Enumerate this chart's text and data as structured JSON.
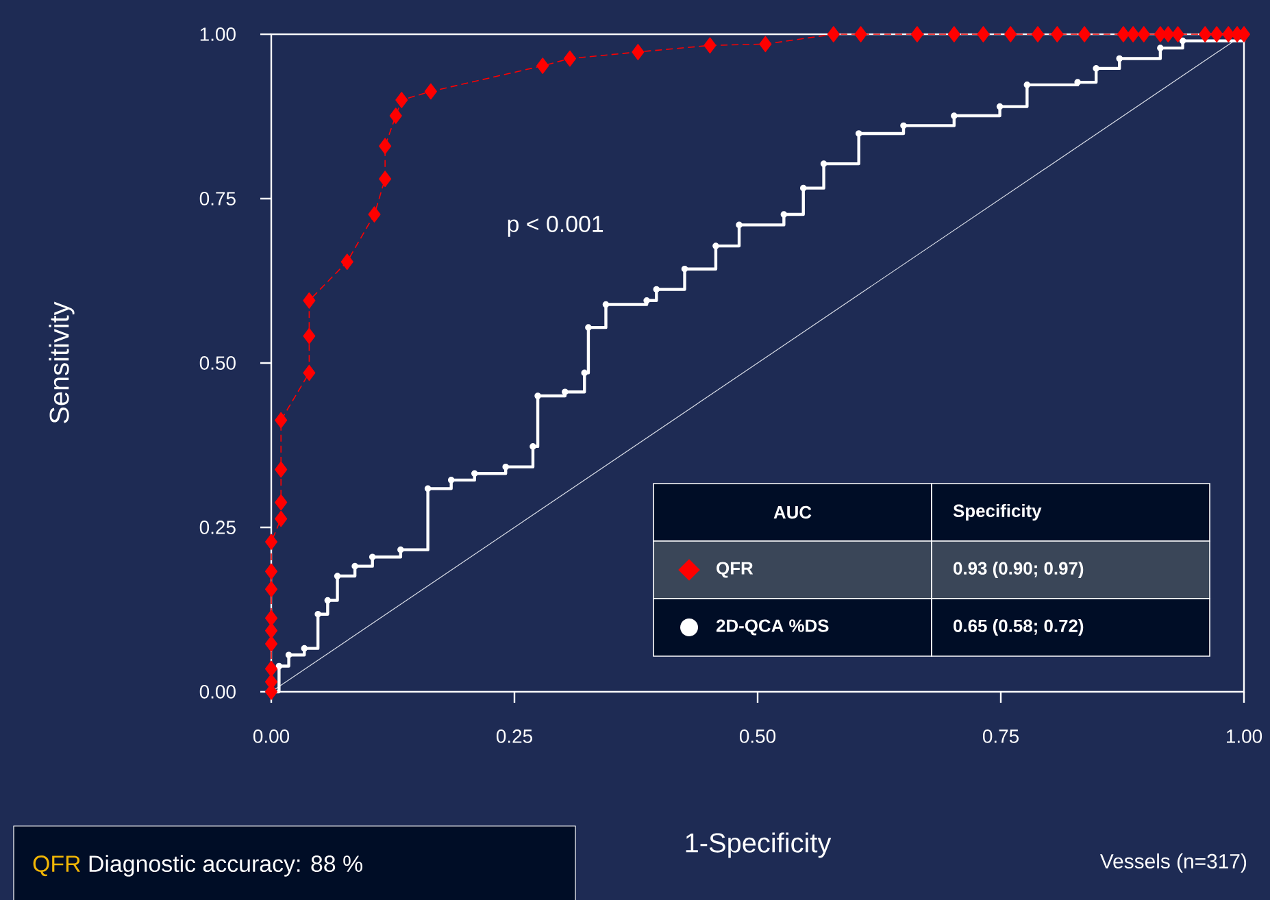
{
  "chart_data": {
    "type": "line",
    "xlabel": "1-Specificity",
    "ylabel": "Sensitivity",
    "xlim": [
      0,
      1
    ],
    "ylim": [
      0,
      1
    ],
    "xticks": [
      {
        "value": 0,
        "label": "0.00"
      },
      {
        "value": 0.25,
        "label": "0.25"
      },
      {
        "value": 0.5,
        "label": "0.50"
      },
      {
        "value": 0.75,
        "label": "0.75"
      },
      {
        "value": 1,
        "label": "1.00"
      }
    ],
    "yticks": [
      {
        "value": 0,
        "label": "0.00"
      },
      {
        "value": 0.25,
        "label": "0.25"
      },
      {
        "value": 0.5,
        "label": "0.50"
      },
      {
        "value": 0.75,
        "label": "0.75"
      },
      {
        "value": 1,
        "label": "1.00"
      }
    ],
    "legend": "bottom right",
    "legend_title": "AUC",
    "series": [
      {
        "name": "QFR",
        "color": "#ff0000",
        "marker": "diamond",
        "line_style": "dashed",
        "x": [
          0,
          0,
          0,
          0,
          0,
          0,
          0,
          0,
          0,
          0.01,
          0.01,
          0.01,
          0.01,
          0.039,
          0.039,
          0.039,
          0.078,
          0.106,
          0.117,
          0.117,
          0.128,
          0.134,
          0.164,
          0.279,
          0.307,
          0.377,
          0.451,
          0.508,
          0.578,
          0.606,
          0.664,
          0.702,
          0.732,
          0.76,
          0.788,
          0.808,
          0.836,
          0.876,
          0.886,
          0.897,
          0.914,
          0.922,
          0.932,
          0.96,
          0.972,
          0.984,
          0.993,
          1
        ],
        "values": [
          0,
          0.015,
          0.035,
          0.073,
          0.093,
          0.112,
          0.156,
          0.183,
          0.228,
          0.263,
          0.288,
          0.338,
          0.413,
          0.485,
          0.541,
          0.595,
          0.654,
          0.726,
          0.78,
          0.83,
          0.876,
          0.9,
          0.913,
          0.952,
          0.963,
          0.973,
          0.983,
          0.985,
          1,
          1,
          1,
          1,
          1,
          1,
          1,
          1,
          1,
          1,
          1,
          1,
          1,
          1,
          1,
          1,
          1,
          1,
          1,
          1
        ]
      },
      {
        "name": "2D-QCA %DS",
        "type": "step",
        "color": "#ffffff",
        "marker": "circle",
        "line_style": "solid",
        "x": [
          0,
          0.008,
          0.018,
          0.034,
          0.048,
          0.058,
          0.068,
          0.086,
          0.104,
          0.133,
          0.161,
          0.185,
          0.209,
          0.241,
          0.269,
          0.274,
          0.302,
          0.322,
          0.326,
          0.344,
          0.386,
          0.396,
          0.425,
          0.457,
          0.481,
          0.527,
          0.547,
          0.568,
          0.604,
          0.65,
          0.702,
          0.749,
          0.777,
          0.829,
          0.848,
          0.872,
          0.914,
          0.937,
          0.999,
          1
        ],
        "values": [
          0,
          0.039,
          0.056,
          0.066,
          0.118,
          0.139,
          0.176,
          0.191,
          0.205,
          0.216,
          0.309,
          0.322,
          0.332,
          0.342,
          0.373,
          0.45,
          0.456,
          0.485,
          0.554,
          0.589,
          0.595,
          0.612,
          0.643,
          0.678,
          0.71,
          0.726,
          0.766,
          0.803,
          0.849,
          0.861,
          0.876,
          0.89,
          0.923,
          0.927,
          0.948,
          0.963,
          0.979,
          0.99,
          null,
          1
        ]
      },
      {
        "color": "#d8dce6",
        "marker": "none",
        "line_style": "solid",
        "x": [
          0,
          1
        ],
        "values": [
          0,
          1
        ]
      }
    ],
    "annotations": [
      "p < 0.001",
      "Specificity",
      "0.93 (0.90; 0.97)",
      "0.65 (0.58; 0.72)",
      "QFR",
      "Diagnostic accuracy: 88 %",
      "Vessels (n=317)"
    ]
  }
}
